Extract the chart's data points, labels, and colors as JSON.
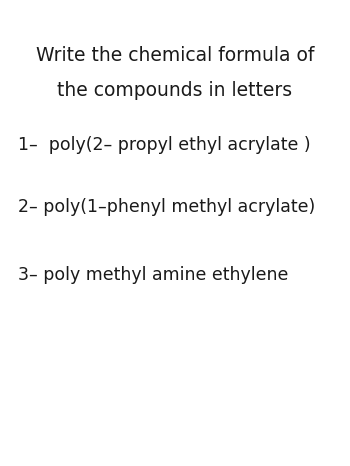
{
  "background_color": "#ffffff",
  "title_line1": "Write the chemical formula of",
  "title_line2": "the compounds in letters",
  "items": [
    "1–  poly(2– propyl ethyl acrylate )",
    "2– poly(1–phenyl methyl acrylate)",
    "3– poly methyl amine ethylene"
  ],
  "title_fontsize": 13.5,
  "item_fontsize": 12.5,
  "title_color": "#1a1a1a",
  "item_color": "#1a1a1a",
  "fig_width": 3.5,
  "fig_height": 4.66,
  "dpi": 100
}
